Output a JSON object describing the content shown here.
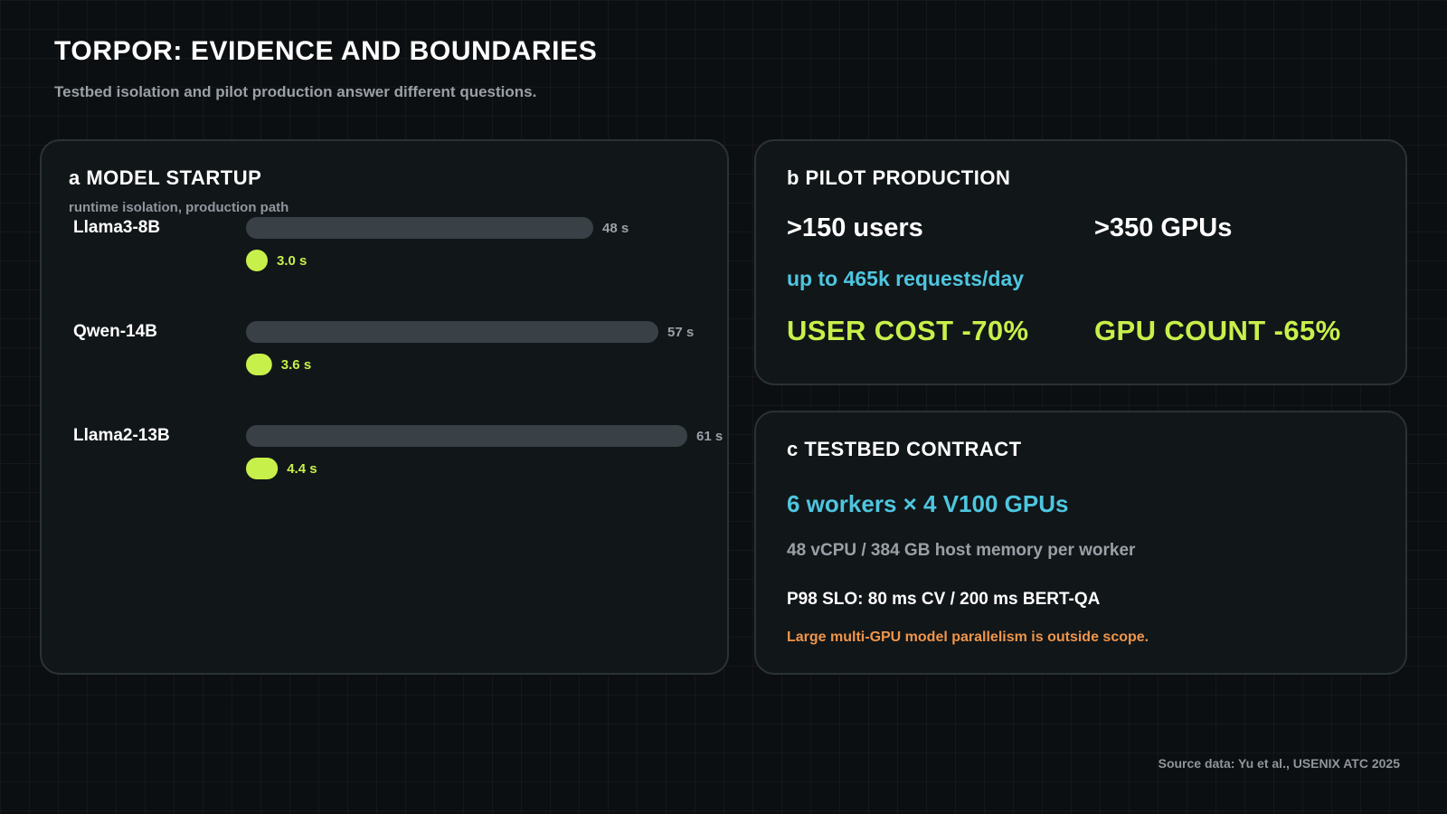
{
  "header": {
    "title": "TORPOR: EVIDENCE AND BOUNDARIES",
    "subtitle": "Testbed isolation and pilot production answer different questions."
  },
  "panel_a": {
    "title": "a MODEL STARTUP",
    "subtitle": "runtime isolation, production path"
  },
  "panel_b": {
    "title": "b PILOT PRODUCTION",
    "users": ">150 users",
    "gpus": ">350 GPUs",
    "requests": "up to 465k requests/day",
    "user_cost": "USER COST -70%",
    "gpu_count": "GPU COUNT -65%"
  },
  "panel_c": {
    "title": "c TESTBED CONTRACT",
    "workers": "6 workers × 4 V100 GPUs",
    "host": "48 vCPU / 384 GB host memory per worker",
    "slo": "P98 SLO: 80 ms CV / 200 ms BERT-QA",
    "scope_note": "Large multi-GPU model parallelism is outside scope."
  },
  "footer": {
    "source": "Source data: Yu et al., USENIX ATC 2025"
  },
  "colors": {
    "background": "#0c0f11",
    "panel": "#111619",
    "baseline_bar": "#3a4146",
    "torpor_bar": "#c8f04a",
    "accent_cyan": "#4ec6df",
    "warning_orange": "#f0954a",
    "muted_text": "#9aa0a6"
  },
  "chart_data": {
    "type": "bar",
    "orientation": "horizontal",
    "unit": "s",
    "categories": [
      "Llama3-8B",
      "Qwen-14B",
      "Llama2-13B"
    ],
    "series": [
      {
        "values": [
          48,
          57,
          61
        ],
        "labels": [
          "48 s",
          "57 s",
          "61 s"
        ],
        "color": "#3a4146"
      },
      {
        "values": [
          3.0,
          3.6,
          4.4
        ],
        "labels": [
          "3.0 s",
          "3.6 s",
          "4.4 s"
        ],
        "color": "#c8f04a"
      }
    ],
    "title": "a MODEL STARTUP",
    "subtitle": "runtime isolation, production path",
    "xlim": [
      0,
      61
    ],
    "grid": false
  }
}
